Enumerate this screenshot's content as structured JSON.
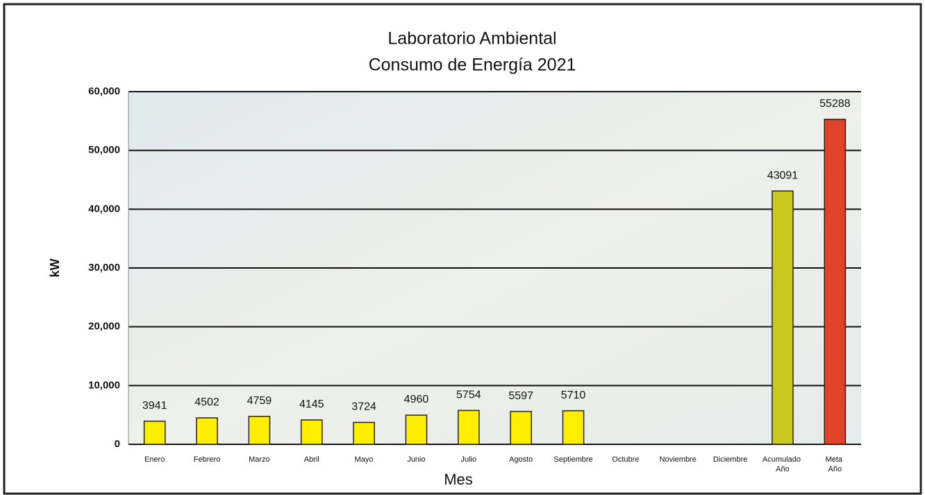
{
  "chart_data": {
    "type": "bar",
    "title": "Laboratorio Ambiental",
    "subtitle": "Consumo de Energía  2021",
    "x_label": "Mes",
    "y_label": "kW",
    "categories": [
      "Enero",
      "Febrero",
      "Marzo",
      "Abril",
      "Mayo",
      "Junio",
      "Julio",
      "Agosto",
      "Septiembre",
      "Octubre",
      "Noviembre",
      "Diciembre",
      "Acumulado Año",
      "Meta Año"
    ],
    "values": [
      3941,
      4502,
      4759,
      4145,
      3724,
      4960,
      5754,
      5597,
      5710,
      null,
      null,
      null,
      43091,
      55288
    ],
    "colors": [
      "#ffee00",
      "#ffee00",
      "#ffee00",
      "#ffee00",
      "#ffee00",
      "#ffee00",
      "#ffee00",
      "#ffee00",
      "#ffee00",
      "#ffee00",
      "#ffee00",
      "#ffee00",
      "#c9c81c",
      "#e0432a"
    ],
    "ylim": [
      0,
      60000
    ],
    "yticks": [
      0,
      {
        "value": 10000,
        "label": "10,000"
      },
      {
        "value": 20000,
        "label": "20,000"
      },
      {
        "value": 30000,
        "label": "30,000"
      },
      {
        "value": 40000,
        "label": "40,000"
      },
      {
        "value": 50000,
        "label": "50,000"
      },
      {
        "value": 60000,
        "label": "60,000"
      }
    ],
    "grid": true
  }
}
